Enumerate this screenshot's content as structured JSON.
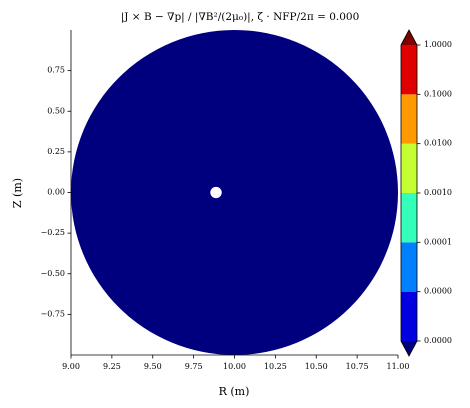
{
  "chart_data": {
    "type": "contourf",
    "title": "|J × B − ∇p| / |∇B²/(2μ₀)|, ζ · NFP/2π = 0.000",
    "xlabel": "R (m)",
    "ylabel": "Z (m)",
    "xlim": [
      9,
      11
    ],
    "xticks": [
      {
        "value": 9,
        "label": "9.00"
      },
      {
        "value": 9.25,
        "label": "9.25"
      },
      {
        "value": 9.5,
        "label": "9.50"
      },
      {
        "value": 9.75,
        "label": "9.75"
      },
      {
        "value": 10,
        "label": "10.00"
      },
      {
        "value": 10.25,
        "label": "10.25"
      },
      {
        "value": 10.5,
        "label": "10.50"
      },
      {
        "value": 10.75,
        "label": "10.75"
      },
      {
        "value": 11,
        "label": "11.00"
      }
    ],
    "ylim": [
      -1,
      1
    ],
    "yticks": [
      {
        "value": -0.75,
        "label": "−0.75"
      },
      {
        "value": -0.5,
        "label": "−0.50"
      },
      {
        "value": -0.25,
        "label": "−0.25"
      },
      {
        "value": 0,
        "label": "0.00"
      },
      {
        "value": 0.25,
        "label": "0.25"
      },
      {
        "value": 0.5,
        "label": "0.50"
      },
      {
        "value": 0.75,
        "label": "0.75"
      }
    ],
    "colorbar_scale": "log",
    "levels": [
      {
        "value": 1e-06,
        "label": "0.0000"
      },
      {
        "value": 1e-05,
        "label": "0.0000"
      },
      {
        "value": 0.0001,
        "label": "0.0001"
      },
      {
        "value": 0.001,
        "label": "0.0010"
      },
      {
        "value": 0.01,
        "label": "0.0100"
      },
      {
        "value": 0.1,
        "label": "0.1000"
      },
      {
        "value": 1,
        "label": "1.0000"
      }
    ],
    "level_colors": [
      "#0000e0",
      "#0080ff",
      "#33ffbb",
      "#c4ff33",
      "#ff9900",
      "#e00000"
    ],
    "extend_colors": {
      "min": "#00007f",
      "max": "#7f0000"
    },
    "regions": [
      {
        "center": [
          10,
          0
        ],
        "radius": 1,
        "color": "#00007f"
      },
      {
        "center": [
          9.887,
          0
        ],
        "radius": 0.035,
        "color": "#ffffff"
      }
    ]
  }
}
